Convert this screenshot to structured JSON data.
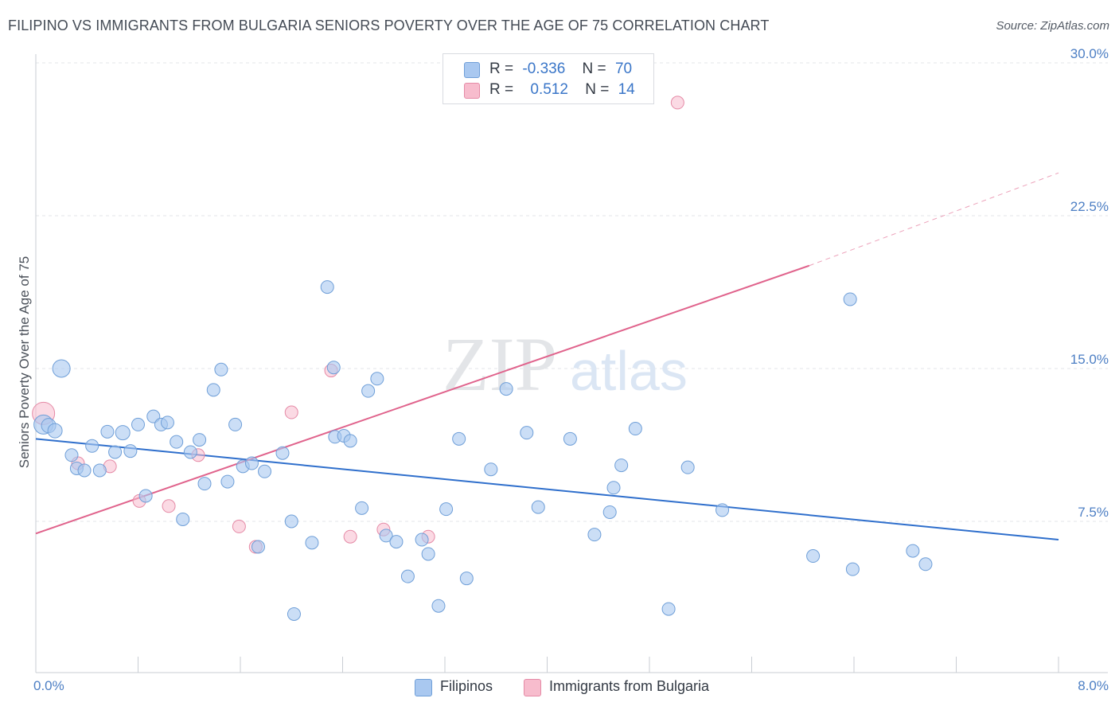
{
  "title": "FILIPINO VS IMMIGRANTS FROM BULGARIA SENIORS POVERTY OVER THE AGE OF 75 CORRELATION CHART",
  "source": "Source: ZipAtlas.com",
  "watermark": {
    "zip": "ZIP",
    "atlas": "atlas"
  },
  "legend": {
    "rows": [
      {
        "r_label": "R =",
        "r_value": "-0.336",
        "n_label": "N =",
        "n_value": "70"
      },
      {
        "r_label": "R =",
        "r_value": "0.512",
        "n_label": "N =",
        "n_value": "14"
      }
    ]
  },
  "bottom_legend": {
    "series1": "Filipinos",
    "series2": "Immigrants from Bulgaria"
  },
  "colors": {
    "blue_fill": "#a9c8f0",
    "blue_stroke": "#6f9fd8",
    "blue_line": "#2f6fcc",
    "pink_fill": "#f7bccd",
    "pink_stroke": "#e58aa6",
    "pink_line": "#e0638c",
    "tick_text": "#4d7fc4",
    "grid": "#e3e6ea"
  },
  "chart_data": {
    "type": "scatter",
    "title": "FILIPINO VS IMMIGRANTS FROM BULGARIA SENIORS POVERTY OVER THE AGE OF 75 CORRELATION CHART",
    "xlabel": "",
    "ylabel": "Seniors Poverty Over the Age of 75",
    "xlim": [
      0,
      8
    ],
    "ylim": [
      0,
      31
    ],
    "x_tick_labels": [
      "0.0%",
      "8.0%"
    ],
    "y_ticks": [
      7.5,
      15.0,
      22.5,
      30.0
    ],
    "y_tick_labels": [
      "7.5%",
      "15.0%",
      "22.5%",
      "30.0%"
    ],
    "grid": true,
    "series": [
      {
        "name": "Filipinos",
        "r": -0.336,
        "n": 70,
        "trend": {
          "x": [
            0.0,
            8.0
          ],
          "y": [
            11.55,
            6.6
          ]
        },
        "points": [
          [
            0.06,
            12.25,
            12
          ],
          [
            0.1,
            12.2,
            9
          ],
          [
            0.15,
            11.95,
            9
          ],
          [
            0.2,
            15.0,
            11
          ],
          [
            0.28,
            10.75,
            8
          ],
          [
            0.32,
            10.1,
            8
          ],
          [
            0.38,
            10.0,
            8
          ],
          [
            0.44,
            11.2,
            8
          ],
          [
            0.5,
            10.0,
            8
          ],
          [
            0.56,
            11.9,
            8
          ],
          [
            0.62,
            10.9,
            8
          ],
          [
            0.68,
            11.85,
            9
          ],
          [
            0.74,
            10.95,
            8
          ],
          [
            0.8,
            12.25,
            8
          ],
          [
            0.86,
            8.75,
            8
          ],
          [
            0.92,
            12.65,
            8
          ],
          [
            0.98,
            12.25,
            8
          ],
          [
            1.03,
            12.35,
            8
          ],
          [
            1.1,
            11.4,
            8
          ],
          [
            1.15,
            7.6,
            8
          ],
          [
            1.21,
            10.9,
            8
          ],
          [
            1.28,
            11.5,
            8
          ],
          [
            1.32,
            9.35,
            8
          ],
          [
            1.39,
            13.95,
            8
          ],
          [
            1.45,
            14.95,
            8
          ],
          [
            1.5,
            9.45,
            8
          ],
          [
            1.56,
            12.25,
            8
          ],
          [
            1.62,
            10.2,
            8
          ],
          [
            1.69,
            10.35,
            8
          ],
          [
            1.74,
            6.25,
            8
          ],
          [
            1.79,
            9.95,
            8
          ],
          [
            1.93,
            10.85,
            8
          ],
          [
            2.0,
            7.5,
            8
          ],
          [
            2.02,
            2.95,
            8
          ],
          [
            2.16,
            6.45,
            8
          ],
          [
            2.28,
            19.0,
            8
          ],
          [
            2.33,
            15.05,
            8
          ],
          [
            2.34,
            11.65,
            8
          ],
          [
            2.41,
            11.7,
            8
          ],
          [
            2.46,
            11.45,
            8
          ],
          [
            2.55,
            8.15,
            8
          ],
          [
            2.6,
            13.9,
            8
          ],
          [
            2.67,
            14.5,
            8
          ],
          [
            2.74,
            6.8,
            8
          ],
          [
            2.82,
            6.5,
            8
          ],
          [
            2.91,
            4.8,
            8
          ],
          [
            3.02,
            6.6,
            8
          ],
          [
            3.07,
            5.9,
            8
          ],
          [
            3.15,
            3.35,
            8
          ],
          [
            3.21,
            8.1,
            8
          ],
          [
            3.31,
            11.55,
            8
          ],
          [
            3.37,
            4.7,
            8
          ],
          [
            3.56,
            10.05,
            8
          ],
          [
            3.68,
            14.0,
            8
          ],
          [
            3.84,
            11.85,
            8
          ],
          [
            3.93,
            8.2,
            8
          ],
          [
            4.18,
            11.55,
            8
          ],
          [
            4.37,
            6.85,
            8
          ],
          [
            4.49,
            7.95,
            8
          ],
          [
            4.52,
            9.15,
            8
          ],
          [
            4.58,
            10.25,
            8
          ],
          [
            4.69,
            12.05,
            8
          ],
          [
            4.95,
            3.2,
            8
          ],
          [
            5.1,
            10.15,
            8
          ],
          [
            5.37,
            8.05,
            8
          ],
          [
            6.08,
            5.8,
            8
          ],
          [
            6.37,
            18.4,
            8
          ],
          [
            6.39,
            5.15,
            8
          ],
          [
            6.86,
            6.05,
            8
          ],
          [
            6.96,
            5.4,
            8
          ]
        ]
      },
      {
        "name": "Immigrants from Bulgaria",
        "r": 0.512,
        "n": 14,
        "trend": {
          "x": [
            0.0,
            6.05
          ],
          "y": [
            6.9,
            20.05
          ]
        },
        "trend_extension": {
          "x": [
            6.05,
            8.0
          ],
          "y": [
            20.05,
            24.6
          ]
        },
        "points": [
          [
            0.06,
            12.8,
            14
          ],
          [
            0.33,
            10.35,
            8
          ],
          [
            0.58,
            10.2,
            8
          ],
          [
            0.81,
            8.5,
            8
          ],
          [
            1.04,
            8.25,
            8
          ],
          [
            1.27,
            10.75,
            8
          ],
          [
            1.59,
            7.25,
            8
          ],
          [
            1.72,
            6.25,
            8
          ],
          [
            2.0,
            12.85,
            8
          ],
          [
            2.31,
            14.9,
            8
          ],
          [
            2.46,
            6.75,
            8
          ],
          [
            2.72,
            7.1,
            8
          ],
          [
            3.07,
            6.75,
            8
          ],
          [
            5.02,
            28.05,
            8
          ]
        ]
      }
    ]
  }
}
